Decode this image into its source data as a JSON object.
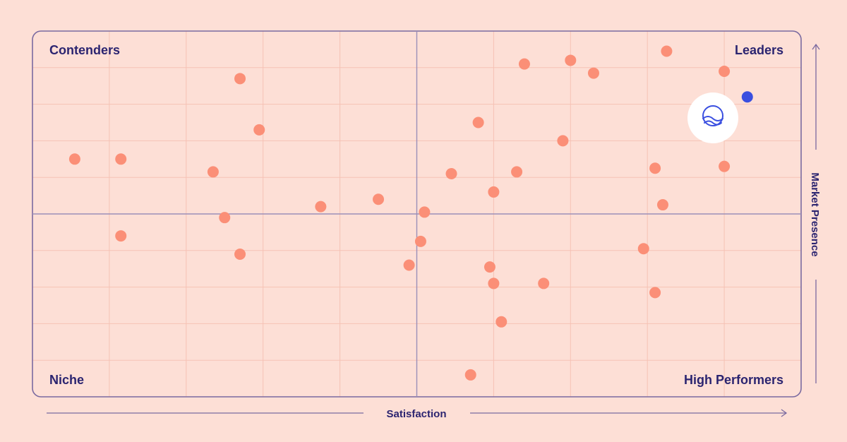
{
  "colors": {
    "background": "#fddfd6",
    "grid": "#f6c2b5",
    "frame": "#7a6aa0",
    "midline": "#9b8fb8",
    "point": "#fb8f77",
    "highlight": "#3a4fe0",
    "text": "#2b2470",
    "badge": "#ffffff",
    "logo_stroke": "#3a4fe0"
  },
  "icons": {
    "highlight_badge": "wave-logo-icon"
  },
  "chart_data": {
    "type": "scatter",
    "title": "",
    "xlabel": "Satisfaction",
    "ylabel": "Market Presence",
    "xlim": [
      0,
      100
    ],
    "ylim": [
      0,
      100
    ],
    "grid": true,
    "midlines": {
      "x": 50,
      "y": 50
    },
    "quadrants": {
      "top_left": "Contenders",
      "top_right": "Leaders",
      "bottom_left": "Niche",
      "bottom_right": "High Performers"
    },
    "points": [
      {
        "x": 5.5,
        "y": 65
      },
      {
        "x": 11.5,
        "y": 65
      },
      {
        "x": 27,
        "y": 87
      },
      {
        "x": 29.5,
        "y": 73
      },
      {
        "x": 23.5,
        "y": 61.5
      },
      {
        "x": 25,
        "y": 49
      },
      {
        "x": 11.5,
        "y": 44
      },
      {
        "x": 27,
        "y": 39
      },
      {
        "x": 37.5,
        "y": 52
      },
      {
        "x": 45,
        "y": 54
      },
      {
        "x": 51,
        "y": 50.5
      },
      {
        "x": 54.5,
        "y": 61
      },
      {
        "x": 58,
        "y": 75
      },
      {
        "x": 60,
        "y": 56
      },
      {
        "x": 63,
        "y": 61.5
      },
      {
        "x": 64,
        "y": 91
      },
      {
        "x": 70,
        "y": 92
      },
      {
        "x": 69,
        "y": 70
      },
      {
        "x": 73,
        "y": 88.5
      },
      {
        "x": 81,
        "y": 62.5
      },
      {
        "x": 82,
        "y": 52.5
      },
      {
        "x": 82.5,
        "y": 94.5
      },
      {
        "x": 90,
        "y": 89
      },
      {
        "x": 90,
        "y": 63
      },
      {
        "x": 50.5,
        "y": 42.5
      },
      {
        "x": 49,
        "y": 36
      },
      {
        "x": 59.5,
        "y": 35.5
      },
      {
        "x": 60,
        "y": 31
      },
      {
        "x": 66.5,
        "y": 31
      },
      {
        "x": 79.5,
        "y": 40.5
      },
      {
        "x": 81,
        "y": 28.5
      },
      {
        "x": 61,
        "y": 20.5
      },
      {
        "x": 57,
        "y": 6
      }
    ],
    "highlight_point": {
      "x": 93,
      "y": 82
    }
  }
}
